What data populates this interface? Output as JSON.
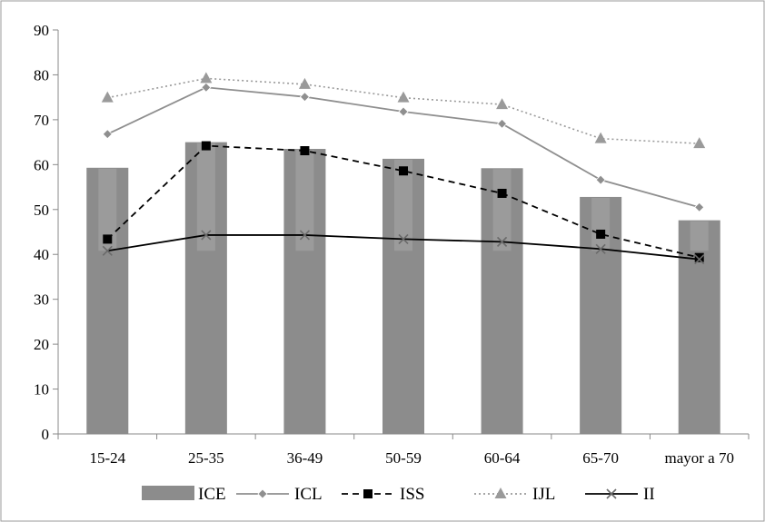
{
  "chart_data": {
    "type": "bar",
    "categories": [
      "15-24",
      "25-35",
      "36-49",
      "50-59",
      "60-64",
      "65-70",
      "mayor a 70"
    ],
    "ylim": [
      0,
      90
    ],
    "yticks": [
      0,
      10,
      20,
      30,
      40,
      50,
      60,
      70,
      80,
      90
    ],
    "grid": false,
    "legend_position": "bottom",
    "series": [
      {
        "name": "ICE",
        "kind": "bar",
        "color": "#8c8c8c",
        "values": [
          59.3,
          65.0,
          63.5,
          61.3,
          59.2,
          52.8,
          47.6
        ]
      },
      {
        "name": "ICL",
        "kind": "line",
        "color": "#8f8f8f",
        "line_style": "solid",
        "marker": "diamond",
        "values": [
          66.8,
          77.2,
          75.1,
          71.8,
          69.1,
          56.6,
          50.5
        ]
      },
      {
        "name": "ISS",
        "kind": "line",
        "color": "#000000",
        "line_style": "dashed",
        "marker": "square",
        "values": [
          43.4,
          64.2,
          63.1,
          58.6,
          53.6,
          44.5,
          39.3
        ]
      },
      {
        "name": "IJL",
        "kind": "line",
        "color": "#9a9a9a",
        "line_style": "dotted",
        "marker": "triangle",
        "values": [
          74.9,
          79.2,
          77.9,
          74.9,
          73.4,
          65.8,
          64.7
        ]
      },
      {
        "name": "II",
        "kind": "line",
        "color": "#000000",
        "line_style": "solid",
        "marker": "x",
        "values": [
          40.8,
          44.3,
          44.3,
          43.4,
          42.8,
          41.2,
          38.9
        ]
      }
    ]
  }
}
